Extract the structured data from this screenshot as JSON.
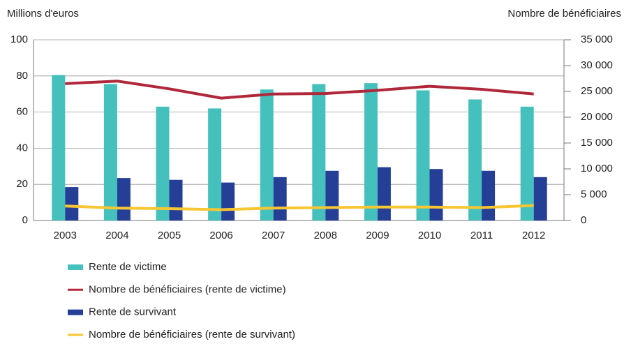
{
  "chart_data": {
    "type": "bar",
    "y_label": "Millions d'euros",
    "y2_label": "Nombre de bénéficiaires",
    "categories": [
      "2003",
      "2004",
      "2005",
      "2006",
      "2007",
      "2008",
      "2009",
      "2010",
      "2011",
      "2012"
    ],
    "series": [
      {
        "name": "Rente de victime",
        "type": "bar",
        "color": "#45c1bd",
        "values": [
          80.5,
          75.5,
          63,
          62,
          72.5,
          75.5,
          76,
          72,
          67,
          63
        ]
      },
      {
        "name": "Nombre de bénéficiaires (rente de victime)",
        "type": "line",
        "axis": "y2",
        "color": "#b0273a",
        "values": [
          26500,
          27000,
          25500,
          23700,
          24500,
          24600,
          25200,
          26000,
          25400,
          24500
        ]
      },
      {
        "name": "Rente de survivant",
        "type": "bar",
        "color": "#253f97",
        "values": [
          18.5,
          23.5,
          22.5,
          21,
          24,
          27.5,
          29.5,
          28.5,
          27.5,
          24
        ]
      },
      {
        "name": "Nombre de bénéficiaires (rente de survivant)",
        "type": "line",
        "axis": "y2",
        "color": "#f7c633",
        "values": [
          2800,
          2400,
          2300,
          2100,
          2400,
          2500,
          2600,
          2600,
          2500,
          2900
        ]
      }
    ],
    "ylim": [
      0,
      100
    ],
    "yticks": [
      0,
      20,
      40,
      60,
      80,
      100
    ],
    "y2lim": [
      0,
      35000
    ],
    "y2ticks": [
      0,
      {
        "value": 5000,
        "label": "5 000"
      },
      {
        "value": 10000,
        "label": "10 000"
      },
      {
        "value": 15000,
        "label": "15 000"
      },
      {
        "value": 20000,
        "label": "20 000"
      },
      {
        "value": 25000,
        "label": "25 000"
      },
      {
        "value": 30000,
        "label": "30 000"
      },
      {
        "value": 35000,
        "label": "35 000"
      }
    ],
    "grid": true,
    "legend": "bottom"
  }
}
